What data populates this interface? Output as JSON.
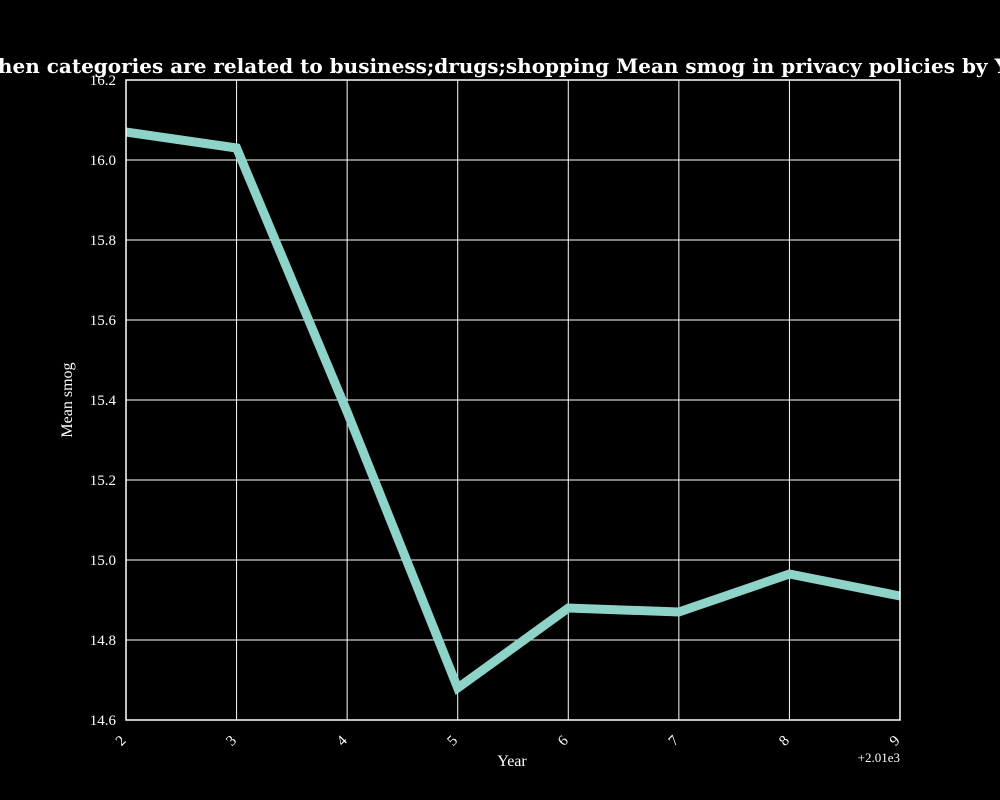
{
  "chart_data": {
    "type": "line",
    "title": "when categories are related to business;drugs;shopping Mean smog in privacy policies by Year",
    "xlabel": "Year",
    "ylabel": "Mean smog",
    "x_offset_label": "+2.01e3",
    "x": [
      2,
      3,
      4,
      5,
      6,
      7,
      8,
      9
    ],
    "x_tick_labels": [
      "2",
      "3",
      "4",
      "5",
      "6",
      "7",
      "8",
      "9"
    ],
    "series": [
      {
        "values": [
          16.07,
          16.03,
          15.37,
          14.68,
          14.88,
          14.87,
          14.965,
          14.91
        ]
      }
    ],
    "xlim": [
      2,
      9
    ],
    "ylim": [
      14.6,
      16.2
    ],
    "y_ticks": [
      14.6,
      14.8,
      15.0,
      15.2,
      15.4,
      15.6,
      15.8,
      16.0,
      16.2
    ],
    "y_tick_labels": [
      "14.6",
      "14.8",
      "15.0",
      "15.2",
      "15.4",
      "15.6",
      "15.8",
      "16.0",
      "16.2"
    ],
    "grid": true,
    "colors": {
      "background": "#000000",
      "grid": "#ffffff",
      "axes": "#ffffff",
      "line": "#8dd3c7",
      "text": "#ffffff"
    }
  }
}
